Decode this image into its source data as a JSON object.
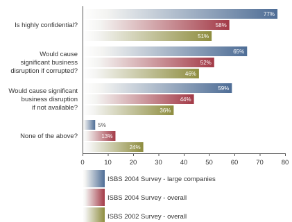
{
  "chart_data": {
    "type": "bar",
    "orientation": "horizontal",
    "title": "",
    "xlabel": "",
    "ylabel": "",
    "categories": [
      [
        "Is highly confidential?"
      ],
      [
        "Would cause",
        "significant business",
        "disruption if corrupted?"
      ],
      [
        "Would cause significant",
        "business disruption",
        "if not available?"
      ],
      [
        "None of the above?"
      ]
    ],
    "series": [
      {
        "name": "ISBS 2004 Survey - large companies",
        "values": [
          77,
          65,
          59,
          5
        ],
        "labels": [
          "77%",
          "65%",
          "59%",
          "5%"
        ],
        "color": "#4e6d96"
      },
      {
        "name": "ISBS 2004 Survey - overall",
        "values": [
          58,
          52,
          44,
          13
        ],
        "labels": [
          "58%",
          "52%",
          "44%",
          "13%"
        ],
        "color": "#a33a47"
      },
      {
        "name": "ISBS 2002 Survey - overall",
        "values": [
          51,
          46,
          36,
          24
        ],
        "labels": [
          "51%",
          "46%",
          "36%",
          "24%"
        ],
        "color": "#8e8d3f"
      }
    ],
    "x_ticks": [
      "0",
      "10",
      "20",
      "30",
      "40",
      "50",
      "60",
      "70",
      "80"
    ],
    "xlim": [
      0,
      80
    ],
    "grid": false,
    "legend_position": "bottom"
  }
}
